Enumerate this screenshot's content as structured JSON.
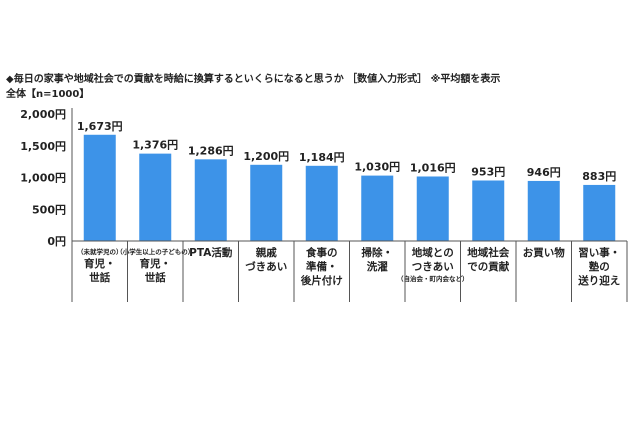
{
  "chart_data": {
    "type": "bar",
    "title": "◆毎日の家事や地域社会での貢献を時給に換算するといくらになると思うか ［数値入力形式］ ※平均額を表示",
    "subtitle": "全体【n=1000】",
    "categories": [
      {
        "note_top": "（未就学児の）",
        "lines": [
          "育児・",
          "世話"
        ],
        "note_bottom": ""
      },
      {
        "note_top": "（小学生以上の子どもの）",
        "lines": [
          "育児・",
          "世話"
        ],
        "note_bottom": ""
      },
      {
        "note_top": "",
        "lines": [
          "PTA活動"
        ],
        "note_bottom": ""
      },
      {
        "note_top": "",
        "lines": [
          "親戚",
          "づきあい"
        ],
        "note_bottom": ""
      },
      {
        "note_top": "",
        "lines": [
          "食事の",
          "準備・",
          "後片付け"
        ],
        "note_bottom": ""
      },
      {
        "note_top": "",
        "lines": [
          "掃除・",
          "洗濯"
        ],
        "note_bottom": ""
      },
      {
        "note_top": "",
        "lines": [
          "地域との",
          "つきあい"
        ],
        "note_bottom": "（自治会・町内会など）"
      },
      {
        "note_top": "",
        "lines": [
          "地域社会",
          "での貢献"
        ],
        "note_bottom": ""
      },
      {
        "note_top": "",
        "lines": [
          "お買い物"
        ],
        "note_bottom": ""
      },
      {
        "note_top": "",
        "lines": [
          "習い事・",
          "塾の",
          "送り迎え"
        ],
        "note_bottom": ""
      }
    ],
    "values": [
      1673,
      1376,
      1286,
      1200,
      1184,
      1030,
      1016,
      953,
      946,
      883
    ],
    "value_labels": [
      "1,673円",
      "1,376円",
      "1,286円",
      "1,200円",
      "1,184円",
      "1,030円",
      "1,016円",
      "953円",
      "946円",
      "883円"
    ],
    "y_ticks": [
      0,
      500,
      1000,
      1500,
      2000
    ],
    "y_tick_labels": [
      "0円",
      "500円",
      "1,000円",
      "1,500円",
      "2,000円"
    ],
    "ylim": [
      0,
      2000
    ],
    "bar_color": "#3d93e8",
    "grid": false,
    "legend": "none"
  }
}
